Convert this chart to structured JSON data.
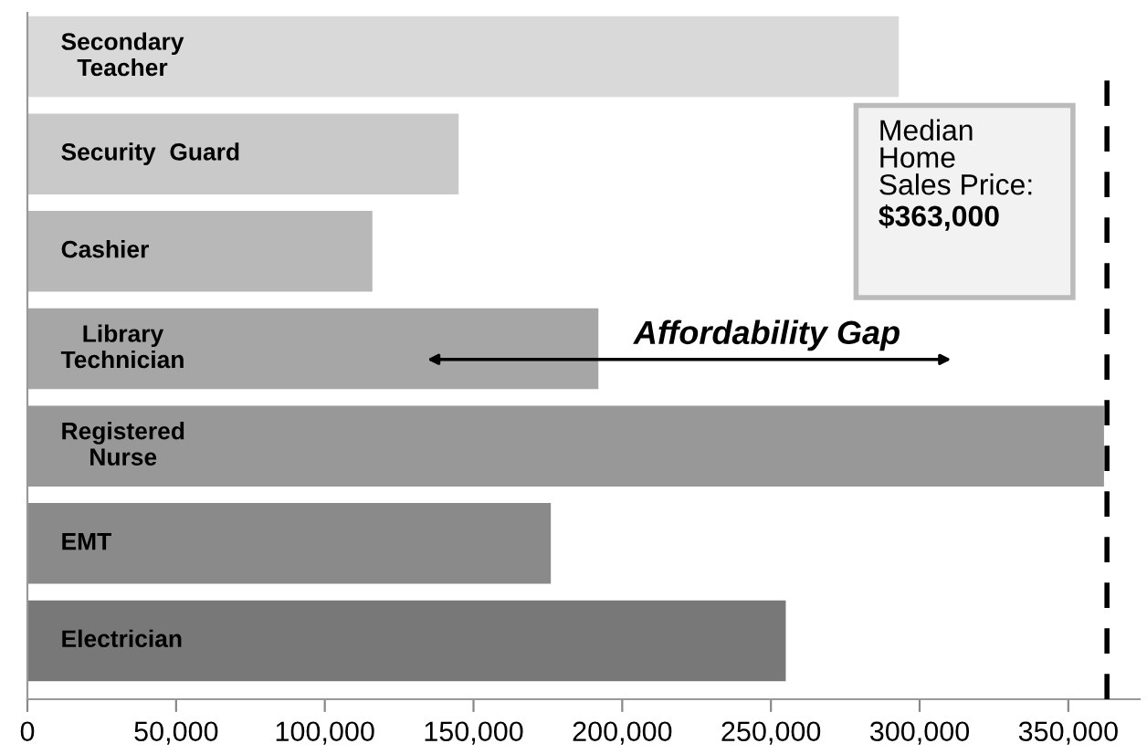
{
  "chart_data": {
    "type": "bar",
    "orientation": "horizontal",
    "categories": [
      "Secondary\nTeacher",
      "Security  Guard",
      "Cashier",
      "Library\nTechnician",
      "Registered\nNurse",
      "EMT",
      "Electrician"
    ],
    "values": [
      293000,
      145000,
      116000,
      192000,
      362000,
      176000,
      255000
    ],
    "colors": [
      "#d9d9d9",
      "#c9c9c9",
      "#b8b8b8",
      "#a6a6a6",
      "#989898",
      "#8a8a8a",
      "#787878"
    ],
    "xlim": [
      0,
      374000
    ],
    "xticks": [
      0,
      {
        "value": 50000,
        "label": "50,000"
      },
      {
        "value": 100000,
        "label": "100,000"
      },
      {
        "value": 150000,
        "label": "150,000"
      },
      {
        "value": 200000,
        "label": "200,000"
      },
      {
        "value": 250000,
        "label": "250,000"
      },
      {
        "value": 300000,
        "label": "300,000"
      },
      {
        "value": 350000,
        "label": "350,000"
      }
    ],
    "ref_lines": [
      {
        "axis": "x",
        "value": 363000,
        "label": "Median\nHome\nSales Price:\n$363,000",
        "color": "#000000",
        "line_style": "dashed"
      }
    ],
    "annotations": [
      "Affordability Gap"
    ],
    "grid": false,
    "legend": false
  }
}
